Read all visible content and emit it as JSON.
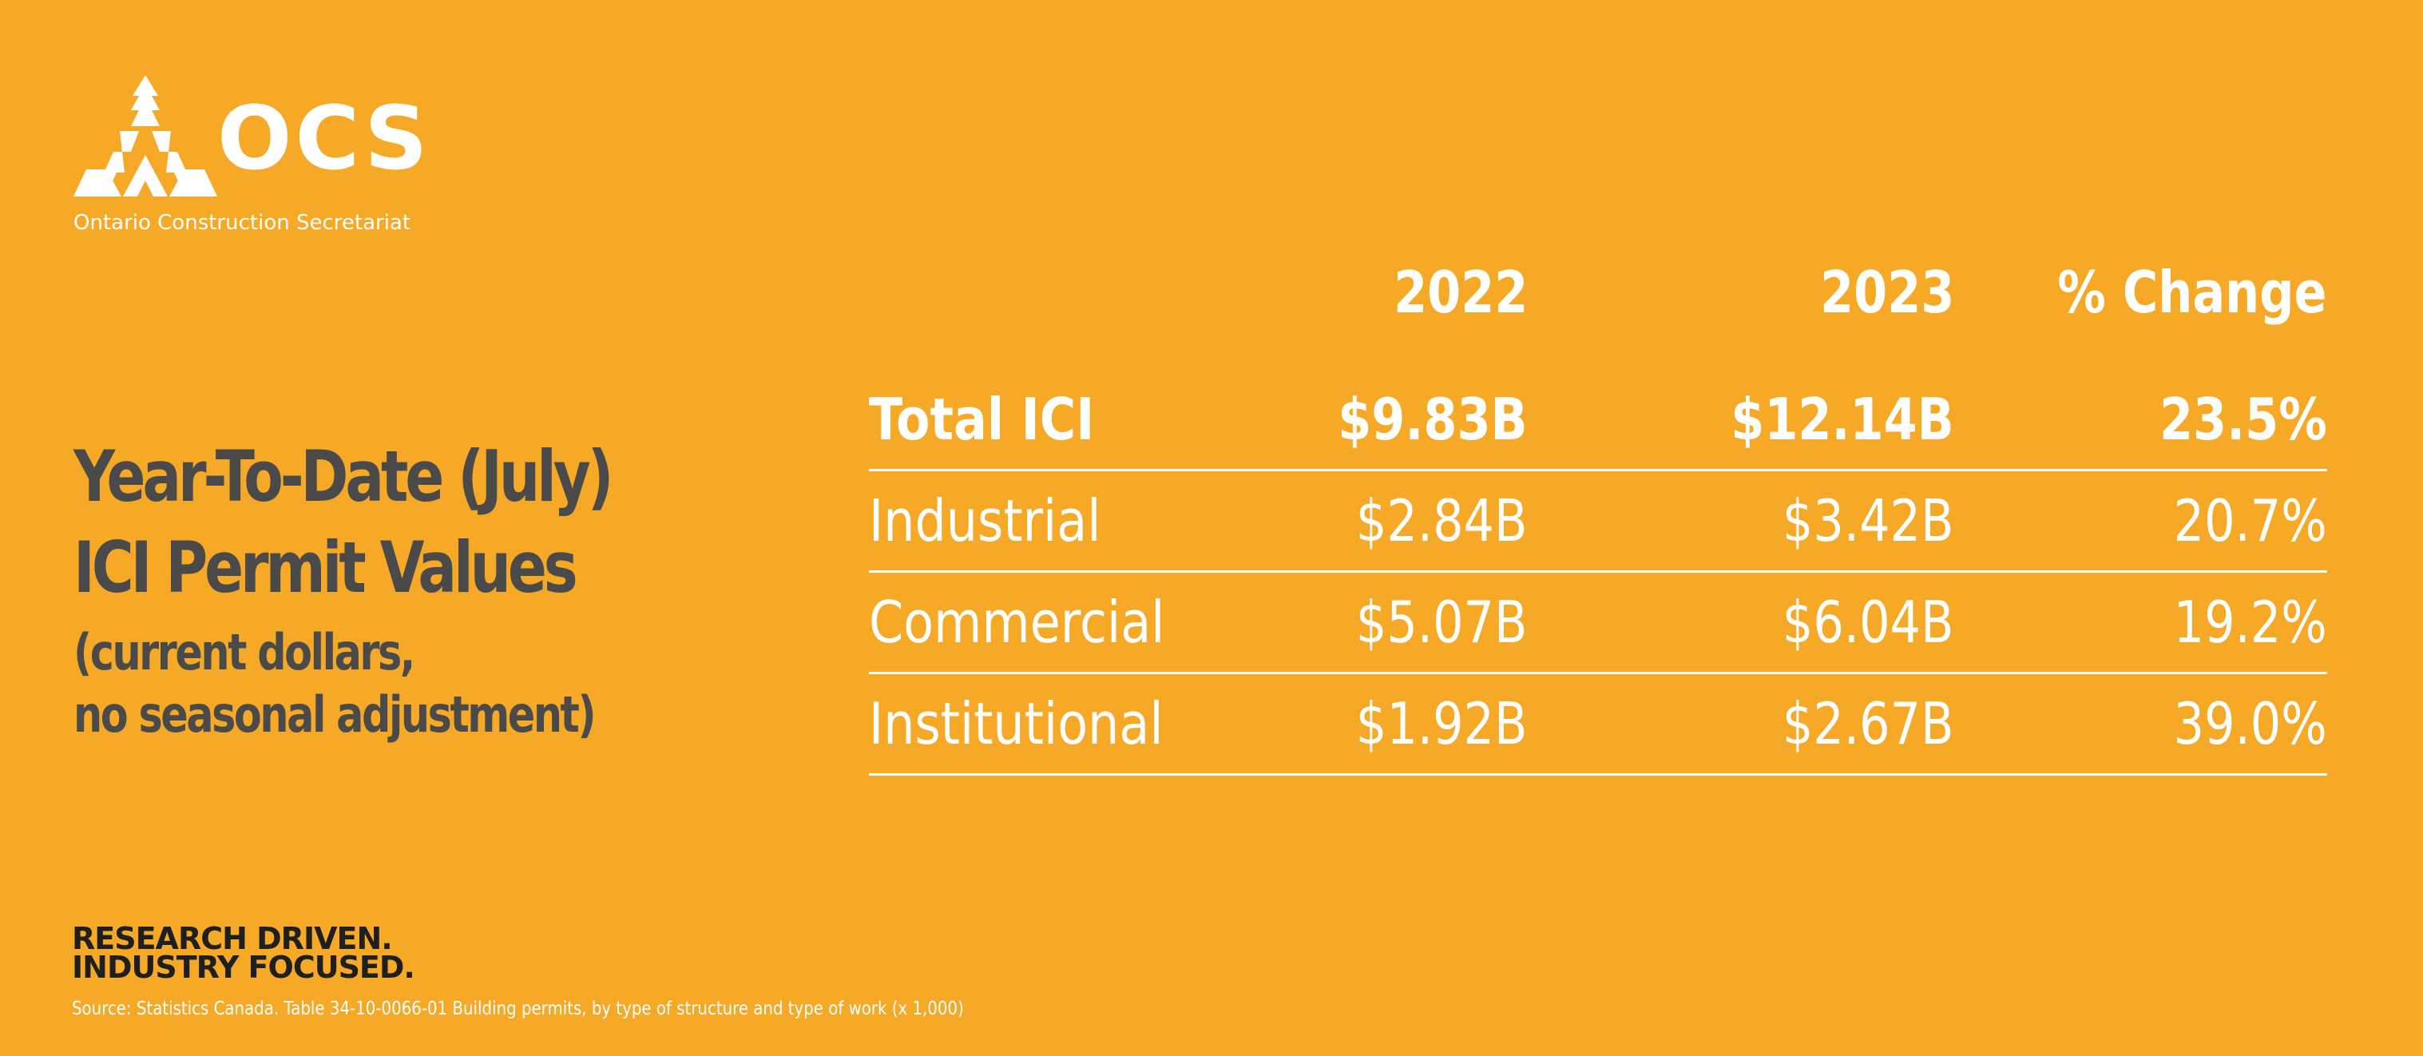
{
  "logo": {
    "wordmark": "OCS",
    "subtitle": "Ontario Construction Secretariat"
  },
  "title": {
    "line1": "Year-To-Date (July)",
    "line2": "ICI Permit Values",
    "sub1": "(current dollars,",
    "sub2": "no seasonal adjustment)"
  },
  "chart_data": {
    "type": "table",
    "columns": [
      "2022",
      "2023",
      "% Change"
    ],
    "rows": [
      {
        "label": "Total ICI",
        "values": [
          "$9.83B",
          "$12.14B",
          "23.5%"
        ],
        "emphasis": true
      },
      {
        "label": "Industrial",
        "values": [
          "$2.84B",
          "$3.42B",
          "20.7%"
        ]
      },
      {
        "label": "Commercial",
        "values": [
          "$5.07B",
          "$6.04B",
          "19.2%"
        ]
      },
      {
        "label": "Institutional",
        "values": [
          "$1.92B",
          "$2.67B",
          "39.0%"
        ]
      }
    ]
  },
  "footer": {
    "tagline_line1": "RESEARCH DRIVEN.",
    "tagline_line2": "INDUSTRY FOCUSED.",
    "source": "Source: Statistics Canada. Table 34-10-0066-01  Building permits, by type of structure and type of work (x 1,000)"
  },
  "colors": {
    "background": "#F5A927",
    "title_text": "#4A4A4A",
    "table_text": "#FFFFFF",
    "tagline_text": "#1F1F1F"
  }
}
